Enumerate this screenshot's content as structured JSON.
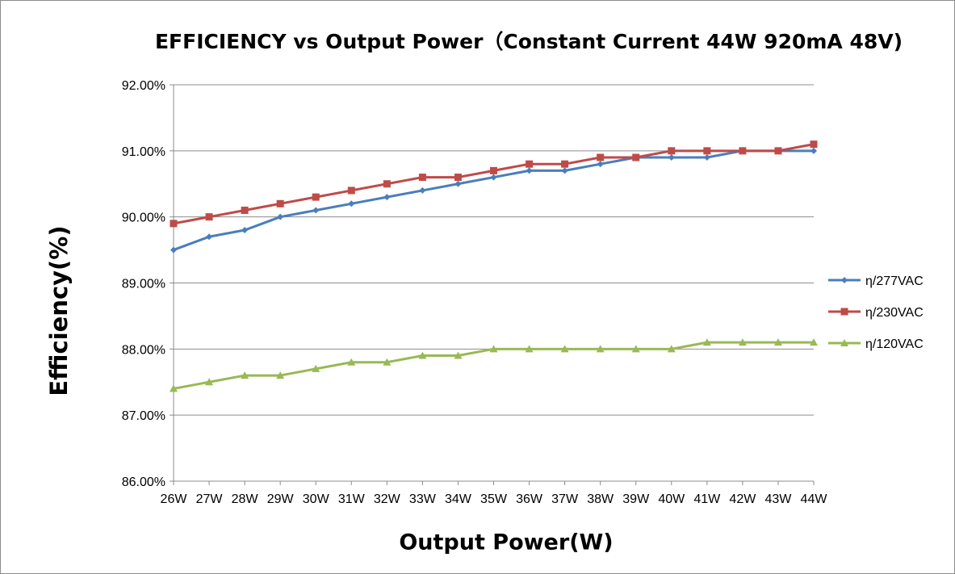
{
  "chart_data": {
    "type": "line",
    "title": "EFFICIENCY vs Output Power（Constant Current 44W 920mA 48V)",
    "xlabel": "Output Power(W)",
    "ylabel": "Efficiency(%)",
    "categories": [
      "26W",
      "27W",
      "28W",
      "29W",
      "30W",
      "31W",
      "32W",
      "33W",
      "34W",
      "35W",
      "36W",
      "37W",
      "38W",
      "39W",
      "40W",
      "41W",
      "42W",
      "43W",
      "44W"
    ],
    "ylim": [
      86.0,
      92.0
    ],
    "yticks": [
      "86.00%",
      "87.00%",
      "88.00%",
      "89.00%",
      "90.00%",
      "91.00%",
      "92.00%"
    ],
    "grid": true,
    "legend_position": "right",
    "series": [
      {
        "name": "η/277VAC",
        "color": "#4A7EBB",
        "marker": "diamond",
        "values": [
          89.5,
          89.7,
          89.8,
          90.0,
          90.1,
          90.2,
          90.3,
          90.4,
          90.5,
          90.6,
          90.7,
          90.7,
          90.8,
          90.9,
          90.9,
          90.9,
          91.0,
          91.0,
          91.0
        ]
      },
      {
        "name": "η/230VAC",
        "color": "#BE4B48",
        "marker": "square",
        "values": [
          89.9,
          90.0,
          90.1,
          90.2,
          90.3,
          90.4,
          90.5,
          90.6,
          90.6,
          90.7,
          90.8,
          90.8,
          90.9,
          90.9,
          91.0,
          91.0,
          91.0,
          91.0,
          91.1
        ]
      },
      {
        "name": "η/120VAC",
        "color": "#98B954",
        "marker": "triangle",
        "values": [
          87.4,
          87.5,
          87.6,
          87.6,
          87.7,
          87.8,
          87.8,
          87.9,
          87.9,
          88.0,
          88.0,
          88.0,
          88.0,
          88.0,
          88.0,
          88.1,
          88.1,
          88.1,
          88.1
        ]
      }
    ]
  }
}
